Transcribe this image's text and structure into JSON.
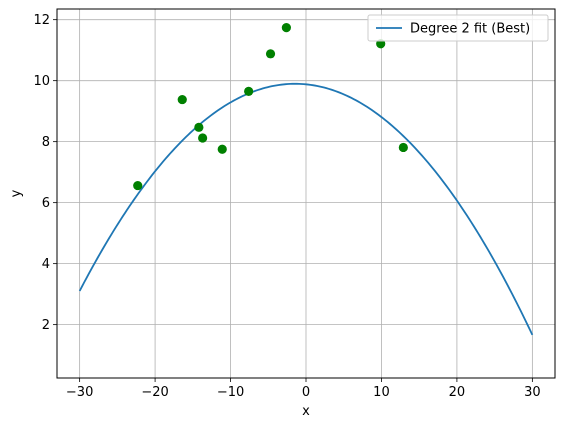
{
  "chart_data": {
    "type": "line",
    "title": "",
    "xlabel": "x",
    "ylabel": "y",
    "xlim": [
      -33,
      33
    ],
    "ylim": [
      0.25,
      12.35
    ],
    "grid": true,
    "legend_position": "top-right",
    "x_ticks": [
      -30,
      -20,
      -10,
      0,
      10,
      20,
      30
    ],
    "x_tick_labels": [
      "−30",
      "−20",
      "−10",
      "0",
      "10",
      "20",
      "30"
    ],
    "y_ticks": [
      2,
      4,
      6,
      8,
      10,
      12
    ],
    "y_tick_labels": [
      "2",
      "4",
      "6",
      "8",
      "10",
      "12"
    ],
    "series": [
      {
        "name": "Degree 2 fit (Best)",
        "kind": "line",
        "color": "#1f77b4",
        "coefficients": {
          "a": -0.00833,
          "b": -0.024,
          "c": 9.88
        },
        "x_range": [
          -30,
          30
        ]
      },
      {
        "kind": "scatter",
        "color": "#008000",
        "points": [
          {
            "x": -22.3,
            "y": 6.56
          },
          {
            "x": -16.4,
            "y": 9.38
          },
          {
            "x": -14.2,
            "y": 8.47
          },
          {
            "x": -13.7,
            "y": 8.12
          },
          {
            "x": -11.1,
            "y": 7.75
          },
          {
            "x": -7.6,
            "y": 9.65
          },
          {
            "x": -4.7,
            "y": 10.88
          },
          {
            "x": -2.6,
            "y": 11.74
          },
          {
            "x": 9.9,
            "y": 11.21
          },
          {
            "x": 12.9,
            "y": 7.81
          }
        ]
      }
    ]
  }
}
